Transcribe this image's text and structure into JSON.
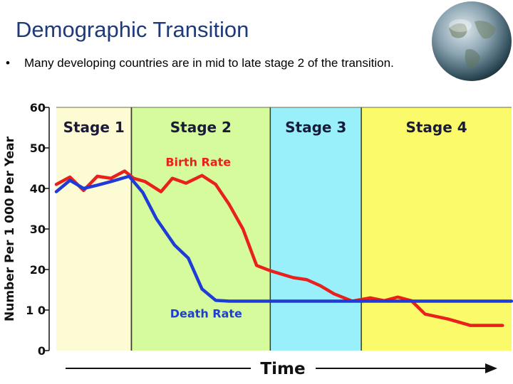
{
  "slide": {
    "title": "Demographic Transition",
    "bullet_marker": "•",
    "bullet_text": "Many developing countries are in mid to late stage 2 of the transition."
  },
  "icons": {
    "globe": "globe-icon"
  },
  "chart_data": {
    "type": "line",
    "xlabel": "Time",
    "ylabel": "Number Per 1 000 Per Year",
    "ylim": [
      0,
      60
    ],
    "yticks": [
      0,
      10,
      20,
      30,
      40,
      50,
      60
    ],
    "ytick_labels": [
      "0",
      "1 0",
      "20",
      "30",
      "40",
      "50",
      "60"
    ],
    "xlim": [
      0,
      100
    ],
    "stages": [
      {
        "label": "Stage 1",
        "x_start": 0,
        "x_end": 16.5,
        "color": "#fdfbd4"
      },
      {
        "label": "Stage 2",
        "x_start": 16.5,
        "x_end": 47,
        "color": "#d6fb9c"
      },
      {
        "label": "Stage 3",
        "x_start": 47,
        "x_end": 67,
        "color": "#99f0fb"
      },
      {
        "label": "Stage 4",
        "x_start": 67,
        "x_end": 100,
        "color": "#fafa6a"
      }
    ],
    "series": [
      {
        "name": "Birth Rate",
        "color": "#e8211c",
        "x": [
          0,
          3,
          6,
          9,
          12,
          15,
          17,
          19.5,
          23,
          25.5,
          28.5,
          32,
          35,
          38,
          41,
          44,
          47,
          52,
          55,
          58,
          61,
          65,
          69,
          72,
          75,
          78,
          81,
          86,
          91,
          94,
          98
        ],
        "y": [
          41,
          42.8,
          39.5,
          43,
          42.5,
          44.3,
          42.5,
          41.7,
          39.2,
          42.5,
          41.3,
          43.2,
          41,
          36,
          30,
          21,
          19.7,
          18,
          17.5,
          16,
          14,
          12.2,
          13,
          12.3,
          13.2,
          12.3,
          9,
          7.8,
          6.2,
          6.2,
          6.2
        ]
      },
      {
        "name": "Death Rate",
        "color": "#1f3cd6",
        "x": [
          0,
          3,
          6,
          9,
          12,
          16,
          19,
          22,
          26,
          29,
          32,
          35,
          38,
          41,
          47,
          60,
          80,
          100
        ],
        "y": [
          39.2,
          42,
          40,
          40.8,
          41.7,
          43,
          39,
          32.5,
          26,
          22.8,
          15.2,
          12.4,
          12.2,
          12.2,
          12.2,
          12.2,
          12.2,
          12.2
        ]
      }
    ]
  }
}
